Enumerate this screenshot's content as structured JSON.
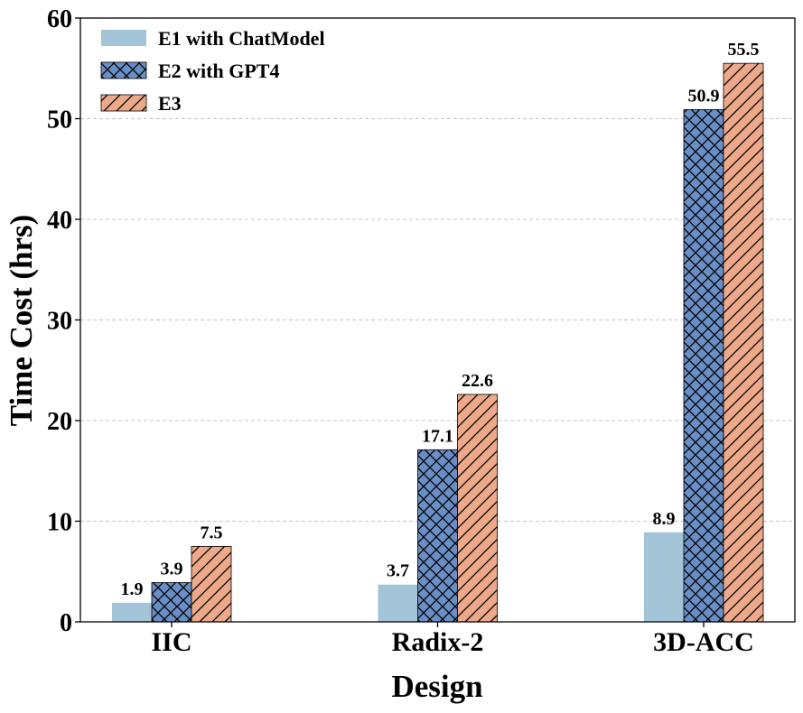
{
  "chart_data": {
    "type": "bar",
    "title": "",
    "xlabel": "Design",
    "ylabel": "Time Cost (hrs)",
    "categories": [
      "IIC",
      "Radix-2",
      "3D-ACC"
    ],
    "ylim": [
      0,
      60
    ],
    "yticks": [
      0,
      10,
      20,
      30,
      40,
      50,
      60
    ],
    "grid": "y-dashed",
    "legend_position": "top-left",
    "series": [
      {
        "name": "E1 with ChatModel",
        "values": [
          1.9,
          3.7,
          8.9
        ],
        "labels": [
          "1.9",
          "3.7",
          "8.9"
        ],
        "color": "#a3c4d6",
        "hatch": "none"
      },
      {
        "name": "E2 with GPT4",
        "values": [
          3.9,
          17.1,
          50.9
        ],
        "labels": [
          "3.9",
          "17.1",
          "50.9"
        ],
        "color": "#6a8fc6",
        "hatch": "cross"
      },
      {
        "name": "E3",
        "values": [
          7.5,
          22.6,
          55.5
        ],
        "labels": [
          "7.5",
          "22.6",
          "55.5"
        ],
        "color": "#eda98a",
        "hatch": "diagonal"
      }
    ]
  }
}
